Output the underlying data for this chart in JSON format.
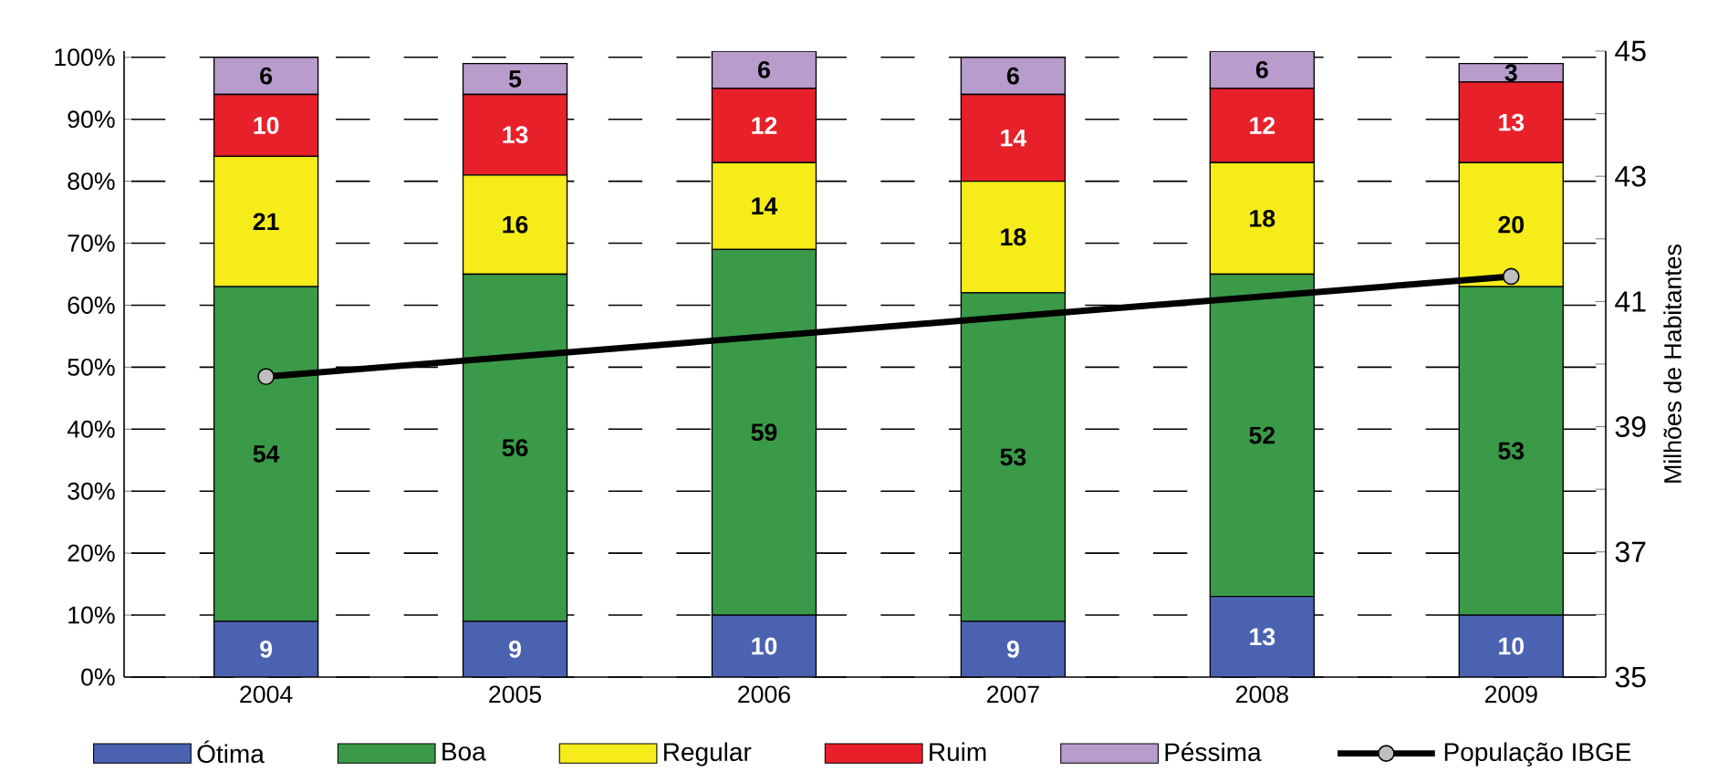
{
  "chart_data": {
    "type": "bar",
    "stacked": true,
    "categories": [
      "2004",
      "2005",
      "2006",
      "2007",
      "2008",
      "2009"
    ],
    "series": [
      {
        "name": "Ótima",
        "color": "#4a62b0",
        "values": [
          9,
          9,
          10,
          9,
          13,
          10
        ],
        "value_labels": [
          "9",
          "9",
          "10",
          "9",
          "13",
          "10"
        ]
      },
      {
        "name": "Boa",
        "color": "#3a9a48",
        "values": [
          54,
          56,
          59,
          53,
          52,
          53
        ],
        "value_labels": [
          "54",
          "56",
          "59",
          "53",
          "52",
          "53"
        ]
      },
      {
        "name": "Regular",
        "color": "#f5ec1a",
        "values": [
          21,
          16,
          14,
          18,
          18,
          20
        ],
        "value_labels": [
          "21",
          "16",
          "14",
          "18",
          "18",
          "20"
        ]
      },
      {
        "name": "Ruim",
        "color": "#e8202a",
        "values": [
          10,
          13,
          12,
          14,
          12,
          13
        ],
        "value_labels": [
          "10",
          "13",
          "12",
          "14",
          "12",
          "13"
        ]
      },
      {
        "name": "Péssima",
        "color": "#b89ccc",
        "values": [
          6,
          5,
          6,
          6,
          6,
          3
        ],
        "value_labels": [
          "6",
          "5",
          "6",
          "6",
          "6",
          "3"
        ]
      },
      {
        "name": "População IBGE",
        "type": "line",
        "axis": "y2",
        "color": "#000000",
        "marker": "circle",
        "values": [
          39.8,
          null,
          null,
          null,
          null,
          41.4
        ]
      }
    ],
    "ylim": [
      0,
      101
    ],
    "yticks": [
      {
        "value": 0,
        "label": "0%"
      },
      {
        "value": 10,
        "label": "10%"
      },
      {
        "value": 20,
        "label": "20%"
      },
      {
        "value": 30,
        "label": "30%"
      },
      {
        "value": 40,
        "label": "40%"
      },
      {
        "value": 50,
        "label": "50%"
      },
      {
        "value": 60,
        "label": "60%"
      },
      {
        "value": 70,
        "label": "70%"
      },
      {
        "value": 80,
        "label": "80%"
      },
      {
        "value": 90,
        "label": "90%"
      },
      {
        "value": 100,
        "label": "100%"
      }
    ],
    "y2lim": [
      35,
      45
    ],
    "y2ticks": [
      35,
      {
        "value": 36,
        "label": null
      },
      37,
      {
        "value": 38,
        "label": null
      },
      39,
      {
        "value": 40,
        "label": null
      },
      41,
      {
        "value": 42,
        "label": null
      },
      43,
      {
        "value": 44,
        "label": null
      },
      45
    ],
    "y2label": "Milhões de Habitantes",
    "grid": "y",
    "legend": "bottom"
  }
}
